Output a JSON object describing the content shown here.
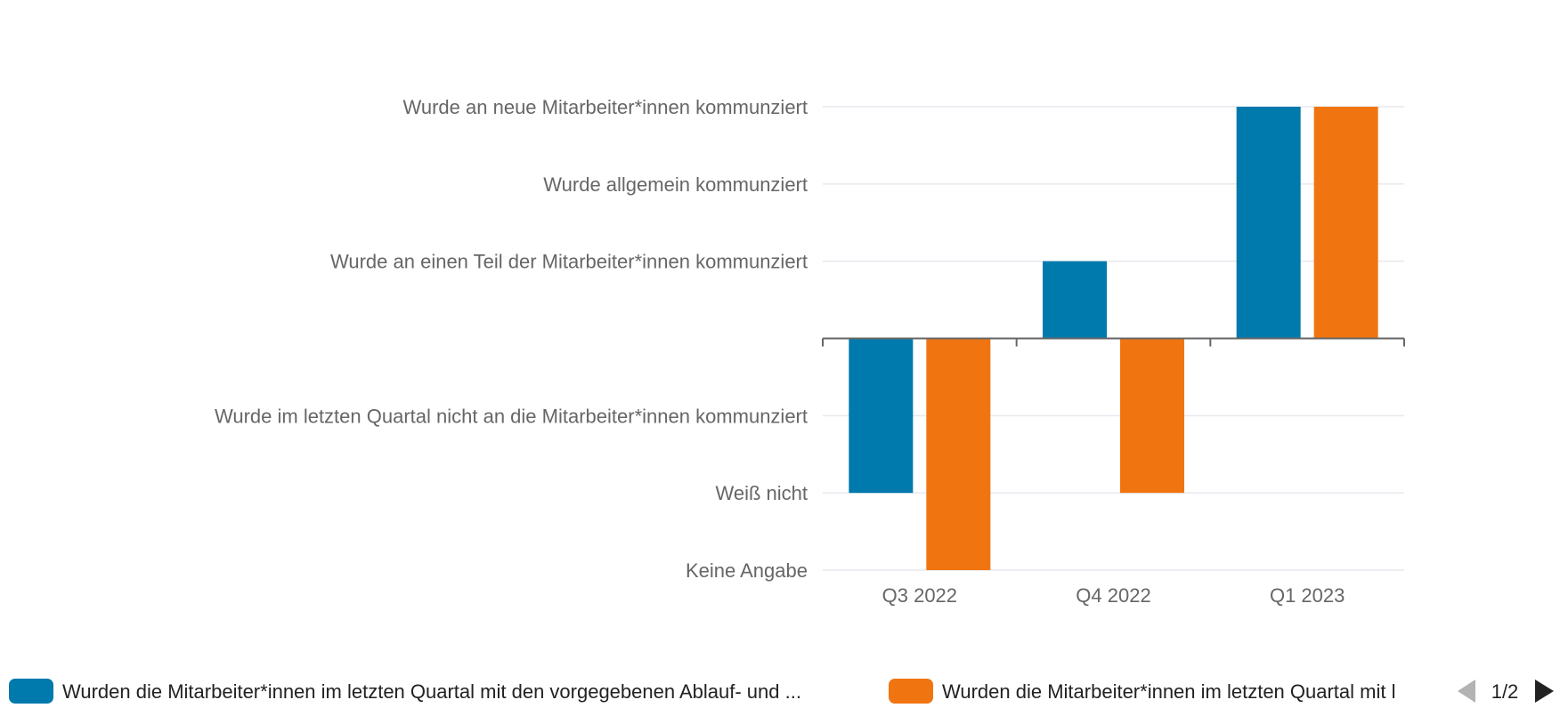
{
  "chart_data": {
    "type": "bar",
    "categories": [
      "Q3 2022",
      "Q4 2022",
      "Q1 2023"
    ],
    "y_tick_labels": [
      "Keine Angabe",
      "Weiß nicht",
      "Wurde im letzten Quartal nicht an die Mitarbeiter*innen kommunziert",
      "",
      "Wurde an einen Teil der Mitarbeiter*innen kommunziert",
      "Wurde allgemein kommunziert",
      "Wurde an neue Mitarbeiter*innen kommunziert"
    ],
    "y_tick_values": [
      -3,
      -2,
      -1,
      0,
      1,
      2,
      3
    ],
    "ylim": [
      -3,
      3
    ],
    "baseline": 0,
    "series": [
      {
        "name": "Wurden die Mitarbeiter*innen im letzten Quartal mit den vorgegebenen Ablauf- und ...",
        "color": "#0079ad",
        "values": [
          -2,
          1,
          3
        ]
      },
      {
        "name": "Wurden die Mitarbeiter*innen im letzten Quartal mit l",
        "color": "#f07511",
        "values": [
          -3,
          -2,
          3
        ]
      }
    ],
    "grid": true,
    "legend": {
      "position": "bottom",
      "page_label": "1/2"
    }
  }
}
